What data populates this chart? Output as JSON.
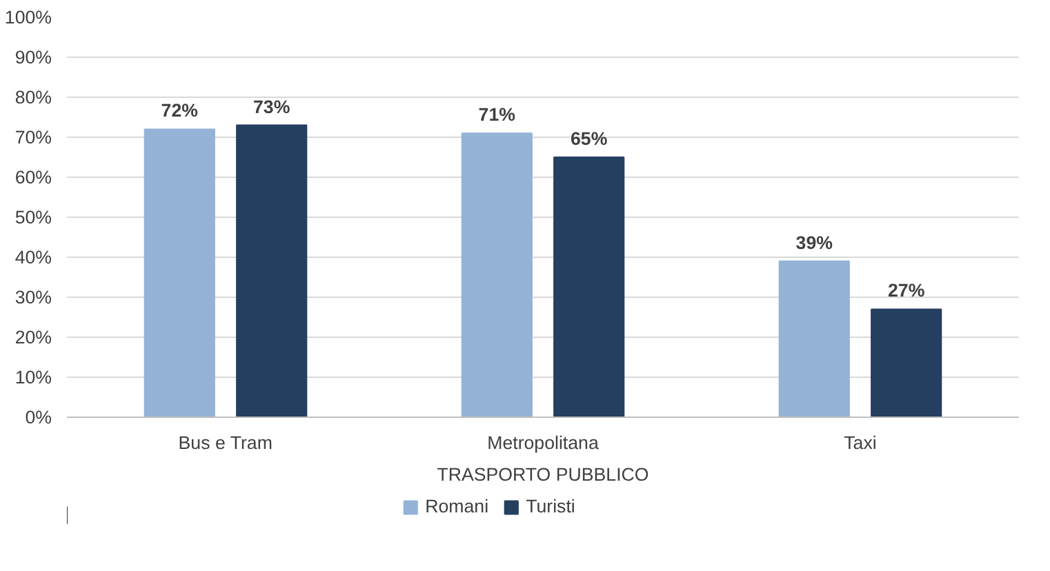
{
  "chart_data": {
    "type": "bar",
    "categories": [
      "Bus e Tram",
      "Metropolitana",
      "Taxi"
    ],
    "xlabel": "TRASPORTO PUBBLICO",
    "series": [
      {
        "name": "Romani",
        "color": "#95b3d7",
        "values": [
          72,
          71,
          39
        ],
        "value_labels": [
          "72%",
          "71%",
          "39%"
        ]
      },
      {
        "name": "Turisti",
        "color": "#243f60",
        "values": [
          73,
          65,
          27
        ],
        "value_labels": [
          "73%",
          "65%",
          "27%"
        ]
      }
    ],
    "ylim": [
      0,
      100
    ],
    "yticks": [
      {
        "value": 0,
        "label": "0%"
      },
      {
        "value": 10,
        "label": "10%"
      },
      {
        "value": 20,
        "label": "20%"
      },
      {
        "value": 30,
        "label": "30%"
      },
      {
        "value": 40,
        "label": "40%"
      },
      {
        "value": 50,
        "label": "50%"
      },
      {
        "value": 60,
        "label": "60%"
      },
      {
        "value": 70,
        "label": "70%"
      },
      {
        "value": 80,
        "label": "80%"
      },
      {
        "value": 90,
        "label": "90%"
      },
      {
        "value": 100,
        "label": "100%"
      }
    ],
    "grid": "y",
    "legend": "bottom"
  }
}
